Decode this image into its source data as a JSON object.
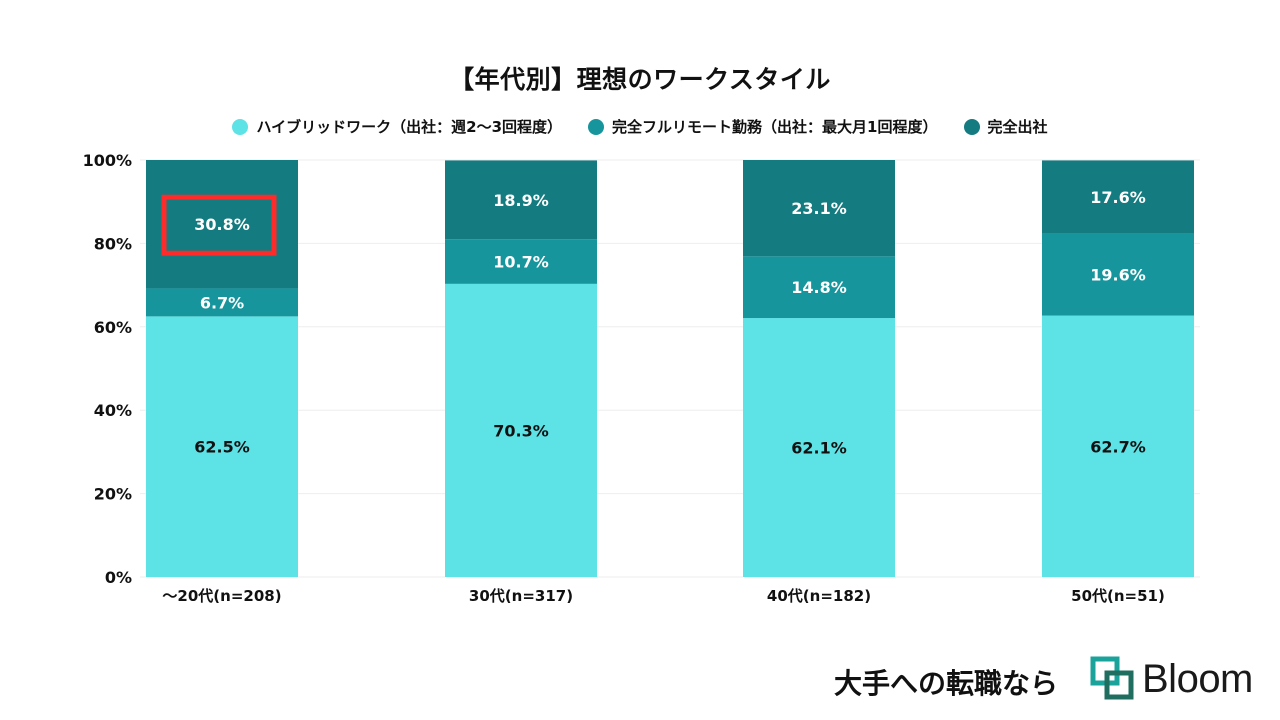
{
  "colors": {
    "hybrid": "#5de2e6",
    "remote": "#17959c",
    "office": "#147b80",
    "highlight": "#ff2a2a",
    "grid": "#eeeeee",
    "logo_teal": "#1aa39b",
    "logo_dark": "#1f6e5f"
  },
  "chart_data": {
    "type": "bar",
    "stacked": true,
    "title": "【年代別】理想のワークスタイル",
    "categories": [
      "～20代(n=208)",
      "30代(n=317)",
      "40代(n=182)",
      "50代(n=51)"
    ],
    "series": [
      {
        "name": "ハイブリッドワーク（出社：週2～3回程度）",
        "values": [
          62.5,
          70.3,
          62.1,
          62.7
        ],
        "labels": [
          "62.5%",
          "70.3%",
          "62.1%",
          "62.7%"
        ]
      },
      {
        "name": "完全フルリモート勤務（出社：最大月1回程度）",
        "values": [
          6.7,
          10.7,
          14.8,
          19.6
        ],
        "labels": [
          "6.7%",
          "10.7%",
          "14.8%",
          "19.6%"
        ]
      },
      {
        "name": "完全出社",
        "values": [
          30.8,
          18.9,
          23.1,
          17.6
        ],
        "labels": [
          "30.8%",
          "18.9%",
          "23.1%",
          "17.6%"
        ]
      }
    ],
    "ylim": [
      0,
      100
    ],
    "yticks": [
      "0%",
      "20%",
      "40%",
      "60%",
      "80%",
      "100%"
    ],
    "grid": true,
    "legend_position": "top",
    "annotation": {
      "type": "highlight-box",
      "category_index": 0,
      "series_index": 2,
      "label": "30.8%"
    }
  },
  "footer": {
    "tagline": "大手への転職なら",
    "brand": "Bloom"
  }
}
